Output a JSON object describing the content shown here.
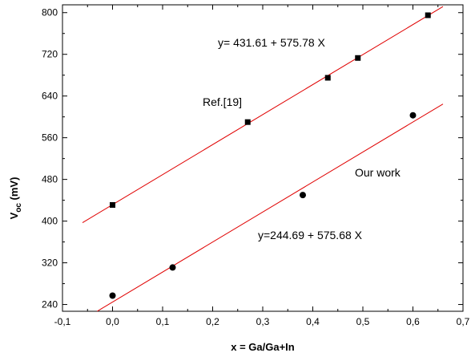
{
  "chart_data": {
    "type": "scatter",
    "xlabel": "x = Ga/Ga+In",
    "ylabel_main": "V",
    "ylabel_sub": "oc",
    "ylabel_unit": " (mV)",
    "xlim": [
      -0.1,
      0.7
    ],
    "ylim": [
      227,
      815
    ],
    "x_ticks": [
      -0.1,
      0.0,
      0.1,
      0.2,
      0.3,
      0.4,
      0.5,
      0.6,
      0.7
    ],
    "x_tick_labels": [
      "-0,1",
      "0,0",
      "0,1",
      "0,2",
      "0,3",
      "0,4",
      "0,5",
      "0,6",
      "0,7"
    ],
    "y_ticks": [
      240,
      320,
      400,
      480,
      560,
      640,
      720,
      800
    ],
    "y_tick_labels": [
      "240",
      "320",
      "400",
      "480",
      "560",
      "640",
      "720",
      "800"
    ],
    "grid": false,
    "series": [
      {
        "name": "Ref.[19]",
        "marker": "square",
        "points": [
          [
            0.0,
            431
          ],
          [
            0.27,
            590
          ],
          [
            0.43,
            675
          ],
          [
            0.49,
            713
          ],
          [
            0.63,
            795
          ]
        ],
        "fit": {
          "label": "y= 431.61 + 575.78 X",
          "intercept": 431.61,
          "slope": 575.78,
          "x_range": [
            -0.06,
            0.66
          ]
        }
      },
      {
        "name": "Our work",
        "marker": "circle",
        "points": [
          [
            0.0,
            257
          ],
          [
            0.12,
            311
          ],
          [
            0.38,
            450
          ],
          [
            0.6,
            603
          ]
        ],
        "fit": {
          "label": "y=244.69 + 575.68 X",
          "intercept": 244.69,
          "slope": 575.68,
          "x_range": [
            -0.06,
            0.66
          ]
        }
      }
    ],
    "fit_color": "#e00000",
    "marker_color": "#000000"
  }
}
